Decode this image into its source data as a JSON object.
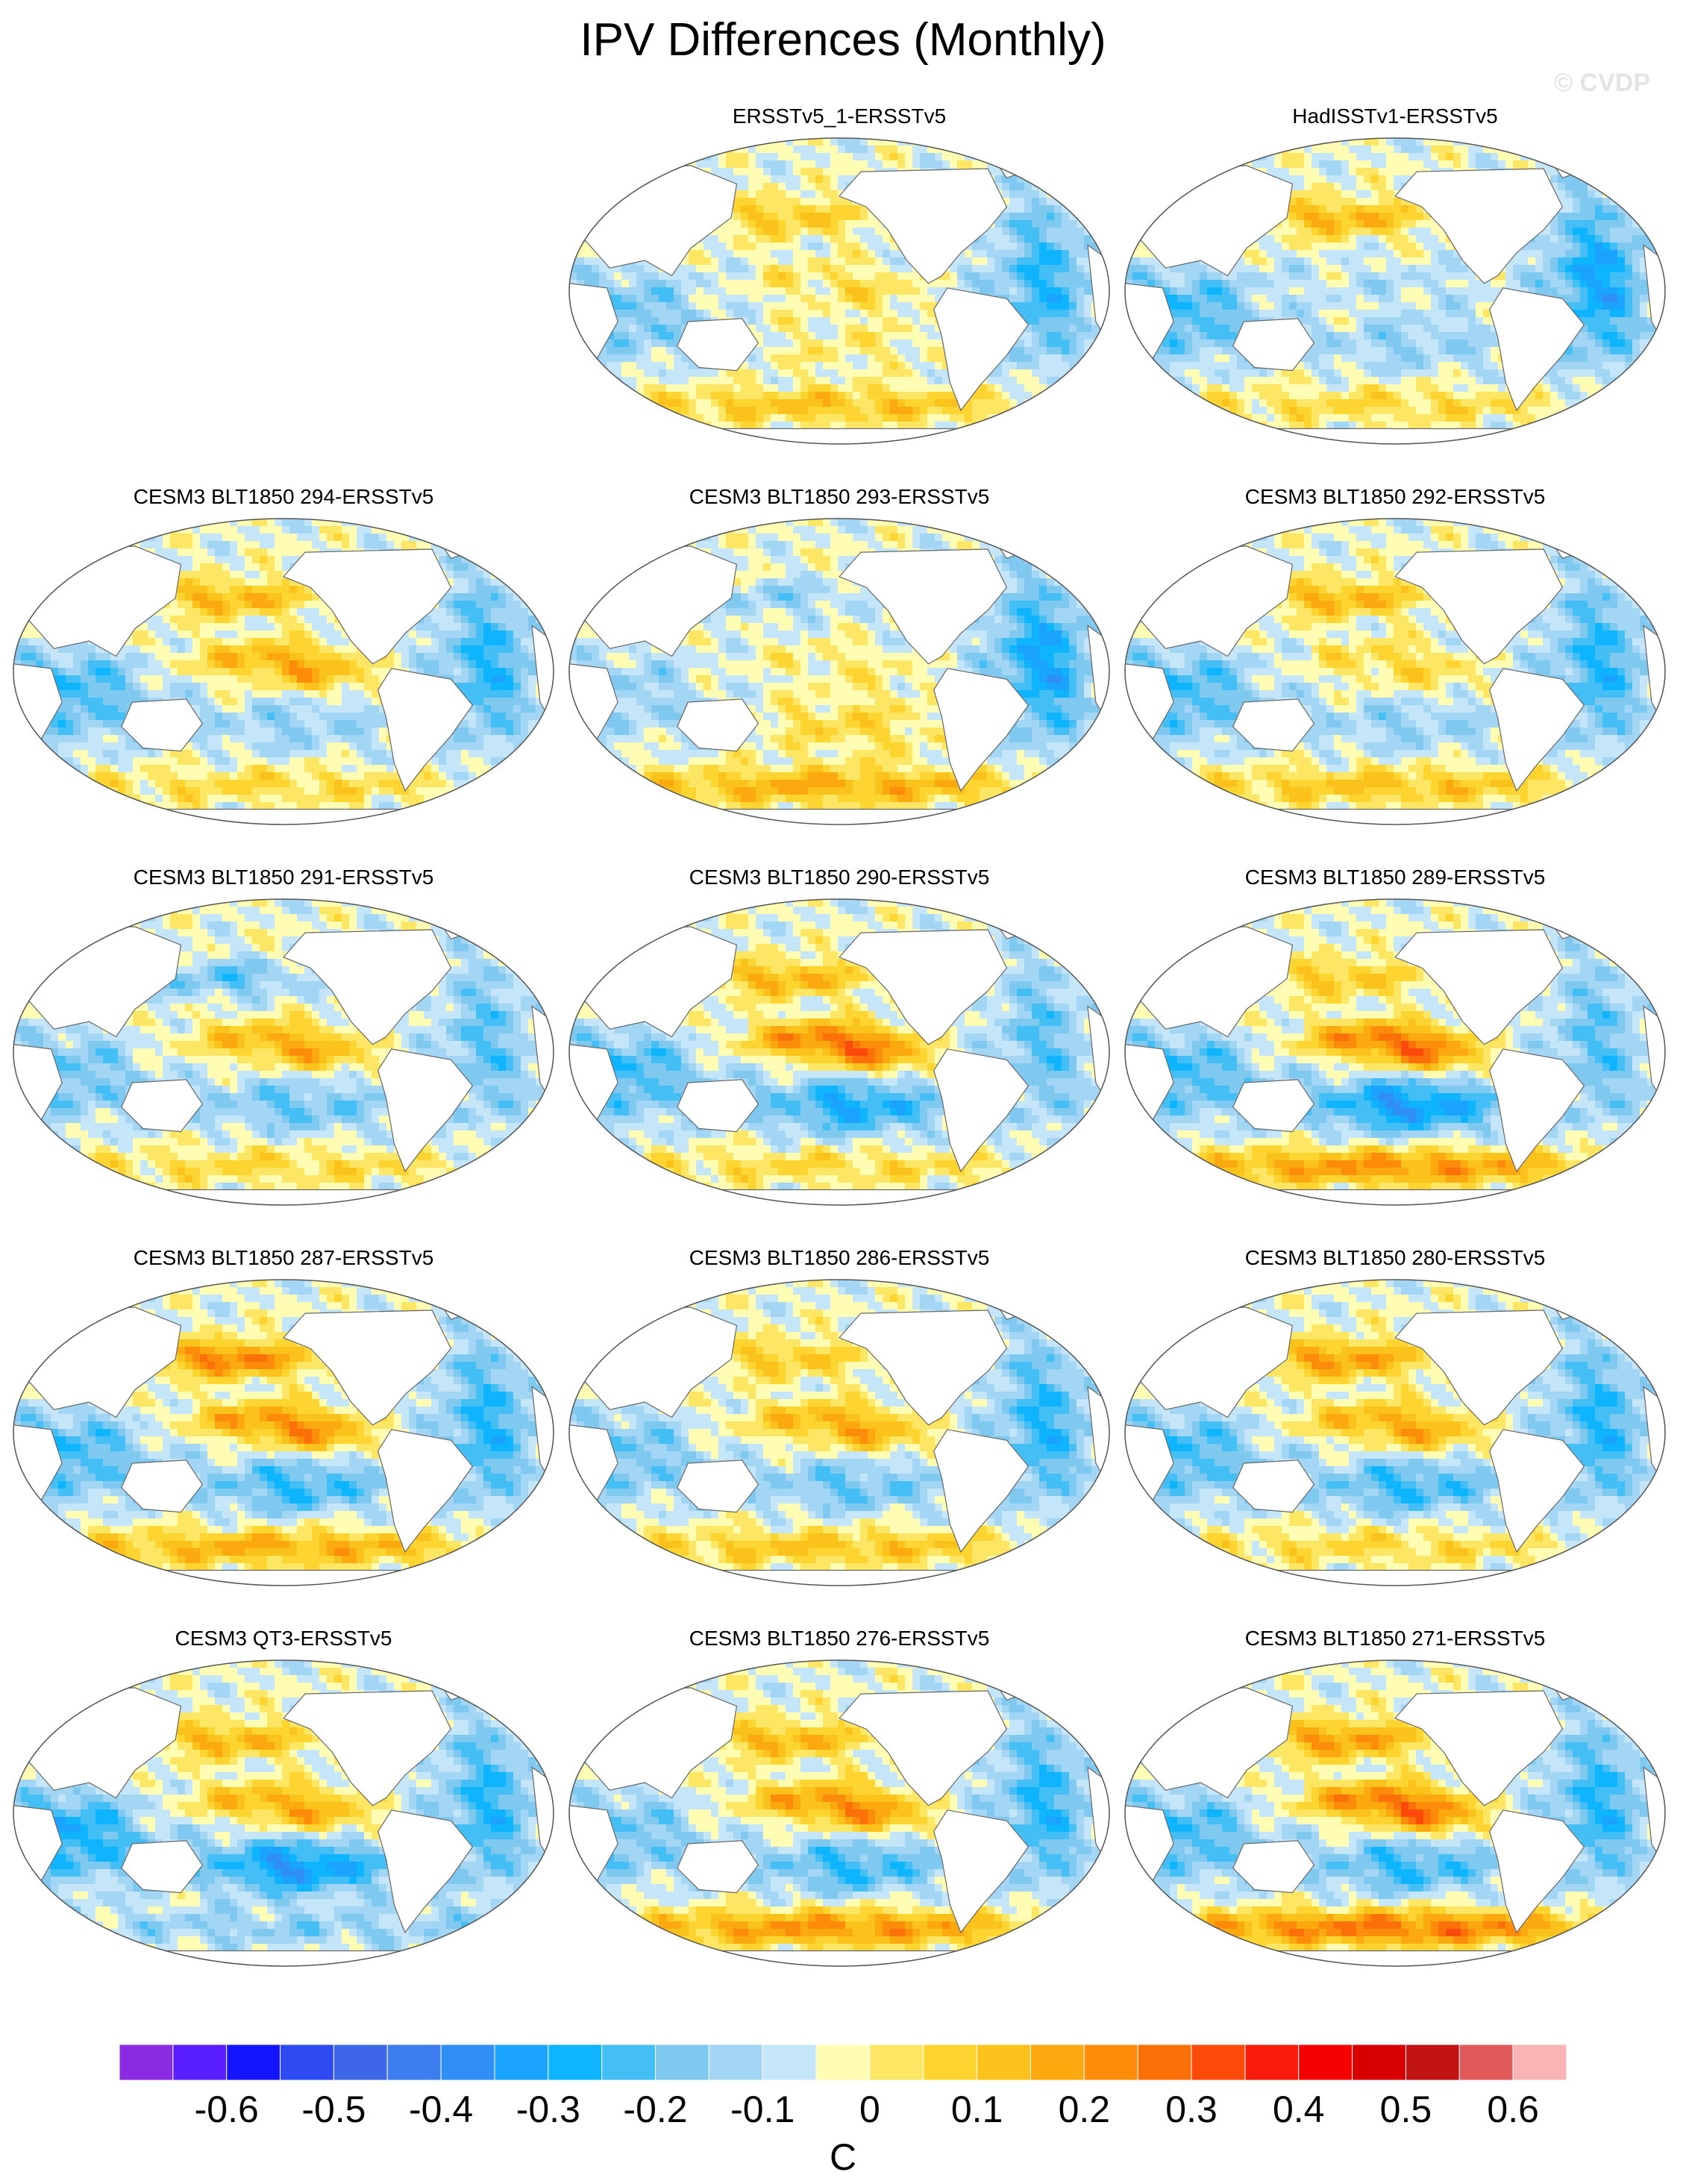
{
  "header": {
    "title": "IPV Differences (Monthly)",
    "watermark": "© CVDP"
  },
  "chart_data": {
    "type": "heatmap",
    "title": "IPV Differences (Monthly)",
    "projection": "Robinson (global, Pacific-centered)",
    "variable": "SST regression difference",
    "units": "C",
    "panels": [
      {
        "label": "ERSSTv5_1-ERSSTv5",
        "pattern": {
          "north_pacific": 0.15,
          "tropical_pacific": 0.08,
          "south_pacific": 0.05,
          "atlantic": -0.2,
          "indian": -0.15,
          "southern_ocean": 0.15
        }
      },
      {
        "label": "HadISSTv1-ERSSTv5",
        "pattern": {
          "north_pacific": 0.2,
          "tropical_pacific": -0.05,
          "south_pacific": -0.1,
          "atlantic": -0.25,
          "indian": -0.2,
          "southern_ocean": 0.1
        }
      },
      {
        "label": "CESM3 BLT1850 294-ERSSTv5",
        "pattern": {
          "north_pacific": 0.2,
          "tropical_pacific": 0.2,
          "south_pacific": -0.1,
          "atlantic": -0.2,
          "indian": -0.2,
          "southern_ocean": 0.1
        }
      },
      {
        "label": "CESM3 BLT1850 293-ERSSTv5",
        "pattern": {
          "north_pacific": -0.1,
          "tropical_pacific": 0.05,
          "south_pacific": 0.1,
          "atlantic": -0.25,
          "indian": -0.1,
          "southern_ocean": 0.2
        }
      },
      {
        "label": "CESM3 BLT1850 292-ERSSTv5",
        "pattern": {
          "north_pacific": 0.2,
          "tropical_pacific": 0.1,
          "south_pacific": -0.1,
          "atlantic": -0.2,
          "indian": -0.2,
          "southern_ocean": 0.15
        }
      },
      {
        "label": "CESM3 BLT1850 291-ERSSTv5",
        "pattern": {
          "north_pacific": -0.15,
          "tropical_pacific": 0.2,
          "south_pacific": -0.15,
          "atlantic": -0.15,
          "indian": -0.15,
          "southern_ocean": 0.1
        }
      },
      {
        "label": "CESM3 BLT1850 290-ERSSTv5",
        "pattern": {
          "north_pacific": 0.2,
          "tropical_pacific": 0.3,
          "south_pacific": -0.25,
          "atlantic": -0.15,
          "indian": -0.2,
          "southern_ocean": 0.1
        }
      },
      {
        "label": "CESM3 BLT1850 289-ERSSTv5",
        "pattern": {
          "north_pacific": 0.15,
          "tropical_pacific": 0.3,
          "south_pacific": -0.3,
          "atlantic": -0.15,
          "indian": -0.2,
          "southern_ocean": 0.25
        }
      },
      {
        "label": "CESM3 BLT1850 287-ERSSTv5",
        "pattern": {
          "north_pacific": 0.3,
          "tropical_pacific": 0.25,
          "south_pacific": -0.2,
          "atlantic": -0.2,
          "indian": -0.2,
          "southern_ocean": 0.2
        }
      },
      {
        "label": "CESM3 BLT1850 286-ERSSTv5",
        "pattern": {
          "north_pacific": 0.15,
          "tropical_pacific": 0.2,
          "south_pacific": -0.15,
          "atlantic": -0.2,
          "indian": -0.15,
          "southern_ocean": 0.15
        }
      },
      {
        "label": "CESM3 BLT1850 280-ERSSTv5",
        "pattern": {
          "north_pacific": 0.25,
          "tropical_pacific": 0.2,
          "south_pacific": -0.2,
          "atlantic": -0.2,
          "indian": -0.2,
          "southern_ocean": 0.1
        }
      },
      {
        "label": "CESM3 QT3-ERSSTv5",
        "pattern": {
          "north_pacific": 0.2,
          "tropical_pacific": 0.2,
          "south_pacific": -0.3,
          "atlantic": -0.2,
          "indian": -0.25,
          "southern_ocean": -0.1
        }
      },
      {
        "label": "CESM3 BLT1850 276-ERSSTv5",
        "pattern": {
          "north_pacific": 0.2,
          "tropical_pacific": 0.25,
          "south_pacific": -0.2,
          "atlantic": -0.2,
          "indian": -0.15,
          "southern_ocean": 0.25
        }
      },
      {
        "label": "CESM3 BLT1850 271-ERSSTv5",
        "pattern": {
          "north_pacific": 0.25,
          "tropical_pacific": 0.3,
          "south_pacific": -0.2,
          "atlantic": -0.2,
          "indian": -0.2,
          "southern_ocean": 0.3
        }
      }
    ],
    "colorbar": {
      "units": "C",
      "levels": [
        -0.65,
        -0.6,
        -0.55,
        -0.5,
        -0.45,
        -0.4,
        -0.35,
        -0.3,
        -0.25,
        -0.2,
        -0.15,
        -0.1,
        -0.05,
        0,
        0.05,
        0.1,
        0.15,
        0.2,
        0.25,
        0.3,
        0.35,
        0.4,
        0.45,
        0.5,
        0.55,
        0.6,
        0.65
      ],
      "tick_labels": [
        "-0.6",
        "-0.5",
        "-0.4",
        "-0.3",
        "-0.2",
        "-0.1",
        "0",
        "0.1",
        "0.2",
        "0.3",
        "0.4",
        "0.5",
        "0.6"
      ],
      "tick_values": [
        -0.6,
        -0.5,
        -0.4,
        -0.3,
        -0.2,
        -0.1,
        0,
        0.1,
        0.2,
        0.3,
        0.4,
        0.5,
        0.6
      ],
      "colors": [
        "#8a2be2",
        "#5a1fff",
        "#1414ff",
        "#2d4bf0",
        "#3d66e8",
        "#3c7df0",
        "#2f8ff5",
        "#1aa3ff",
        "#0fb4ff",
        "#43bff5",
        "#7fc8f0",
        "#a3d5f5",
        "#c4e6f8",
        "#fffcb4",
        "#fde663",
        "#fdd430",
        "#fcc21c",
        "#fca80f",
        "#fc8c0a",
        "#fc700a",
        "#fc4a0a",
        "#fa1c0a",
        "#f50000",
        "#d80000",
        "#c21414",
        "#e05a5a",
        "#fbb4b4"
      ]
    }
  }
}
